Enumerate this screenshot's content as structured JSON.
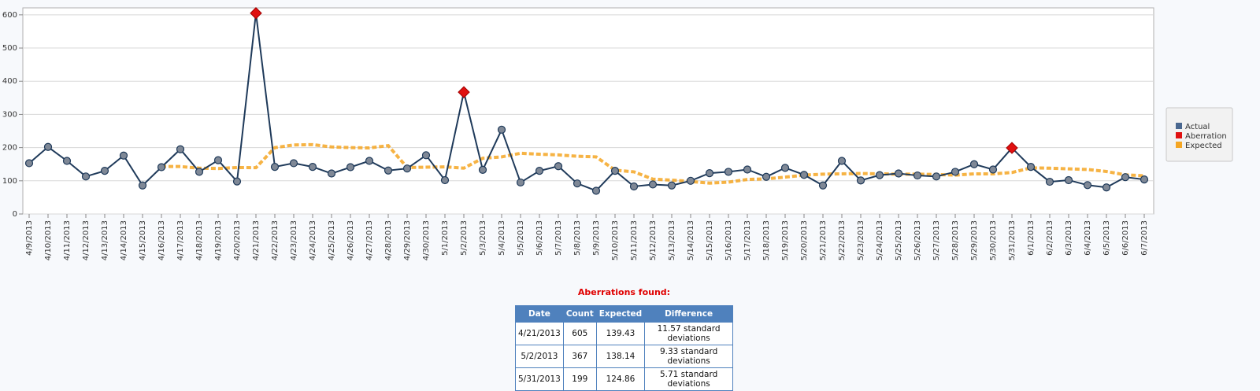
{
  "chart_data": {
    "type": "line",
    "categories": [
      "4/9/2013",
      "4/10/2013",
      "4/11/2013",
      "4/12/2013",
      "4/13/2013",
      "4/14/2013",
      "4/15/2013",
      "4/16/2013",
      "4/17/2013",
      "4/18/2013",
      "4/19/2013",
      "4/20/2013",
      "4/21/2013",
      "4/22/2013",
      "4/23/2013",
      "4/24/2013",
      "4/25/2013",
      "4/26/2013",
      "4/27/2013",
      "4/28/2013",
      "4/29/2013",
      "4/30/2013",
      "5/1/2013",
      "5/2/2013",
      "5/3/2013",
      "5/4/2013",
      "5/5/2013",
      "5/6/2013",
      "5/7/2013",
      "5/8/2013",
      "5/9/2013",
      "5/10/2013",
      "5/11/2013",
      "5/12/2013",
      "5/13/2013",
      "5/14/2013",
      "5/15/2013",
      "5/16/2013",
      "5/17/2013",
      "5/18/2013",
      "5/19/2013",
      "5/20/2013",
      "5/21/2013",
      "5/22/2013",
      "5/23/2013",
      "5/24/2013",
      "5/25/2013",
      "5/26/2013",
      "5/27/2013",
      "5/28/2013",
      "5/29/2013",
      "5/30/2013",
      "5/31/2013",
      "6/1/2013",
      "6/2/2013",
      "6/3/2013",
      "6/4/2013",
      "6/5/2013",
      "6/6/2013",
      "6/7/2013"
    ],
    "series": [
      {
        "name": "Actual",
        "color": "#4a6890",
        "values": [
          153,
          202,
          160,
          113,
          130,
          176,
          86,
          141,
          195,
          127,
          162,
          98,
          605,
          142,
          153,
          142,
          122,
          141,
          160,
          131,
          137,
          177,
          102,
          367,
          133,
          254,
          95,
          130,
          144,
          92,
          70,
          130,
          83,
          89,
          86,
          100,
          123,
          127,
          134,
          112,
          139,
          118,
          86,
          160,
          101,
          117,
          122,
          116,
          113,
          127,
          150,
          134,
          199,
          142,
          97,
          102,
          87,
          80,
          111,
          104
        ]
      },
      {
        "name": "Aberration",
        "color": "#e01010",
        "values": [
          null,
          null,
          null,
          null,
          null,
          null,
          null,
          null,
          null,
          null,
          null,
          null,
          605,
          null,
          null,
          null,
          null,
          null,
          null,
          null,
          null,
          null,
          null,
          367,
          null,
          null,
          null,
          null,
          null,
          null,
          null,
          null,
          null,
          null,
          null,
          null,
          null,
          null,
          null,
          null,
          null,
          null,
          null,
          null,
          null,
          null,
          null,
          null,
          null,
          null,
          null,
          null,
          199,
          null,
          null,
          null,
          null,
          null,
          null,
          null
        ]
      },
      {
        "name": "Expected",
        "color": "#f5a623",
        "values": [
          null,
          null,
          null,
          null,
          null,
          null,
          null,
          143,
          143,
          138,
          137,
          140,
          139.43,
          200,
          208,
          209,
          202,
          200,
          199,
          206,
          140,
          141,
          142,
          138.14,
          168,
          172,
          183,
          180,
          178,
          174,
          172,
          132,
          127,
          105,
          102,
          98,
          93,
          96,
          104,
          106,
          111,
          117,
          120,
          121,
          122,
          121,
          120,
          120,
          119,
          117,
          121,
          121,
          124.86,
          139,
          138,
          136,
          134,
          128,
          118,
          115
        ]
      }
    ],
    "ylim": [
      0,
      621
    ],
    "yticks": [
      0,
      100,
      200,
      300,
      400,
      500,
      600
    ],
    "grid": true,
    "legend": "right"
  },
  "table": {
    "title": "Aberrations found:",
    "header": [
      "Date",
      "Count",
      "Expected",
      "Difference"
    ],
    "rows": [
      [
        "4/21/2013",
        605,
        139.43,
        "11.57 standard deviations"
      ],
      [
        "5/2/2013",
        367,
        138.14,
        "9.33 standard deviations"
      ],
      [
        "5/31/2013",
        199,
        124.86,
        "5.71 standard deviations"
      ]
    ]
  }
}
